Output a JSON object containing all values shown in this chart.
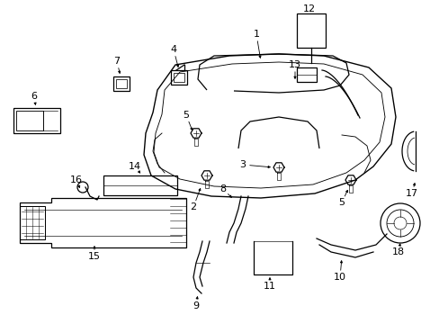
{
  "background_color": "#ffffff",
  "line_color": "#000000",
  "fig_width": 4.89,
  "fig_height": 3.6,
  "dpi": 100,
  "label_fontsize": 8,
  "lw": 0.9
}
